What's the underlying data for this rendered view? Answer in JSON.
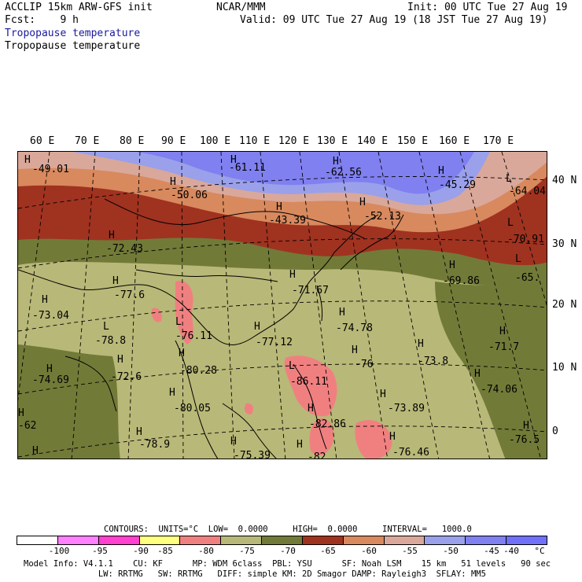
{
  "header": {
    "left_line1": "ACCLIP 15km ARW-GFS init",
    "left_line2": "Fcst:    9 h",
    "field_title_blue": "Tropopause temperature",
    "field_title_black": "Tropopause temperature",
    "center": "NCAR/MMM",
    "init": "Init: 00 UTC Tue 27 Aug 19",
    "valid": "Valid: 09 UTC Tue 27 Aug 19 (18 JST Tue 27 Aug 19)"
  },
  "map": {
    "lon_labels": [
      "60 E",
      "70 E",
      "80 E",
      "90 E",
      "100 E",
      "110 E",
      "120 E",
      "130 E",
      "140 E",
      "150 E",
      "160 E",
      "170 E"
    ],
    "lat_labels": [
      "40 N",
      "30 N",
      "20 N",
      "10 N",
      "0"
    ],
    "band_colors": {
      "c_n45": "#8080f0",
      "c_n50": "#9aa0ea",
      "c_n55": "#d9a89a",
      "c_n60": "#d8895e",
      "c_n65": "#a03220",
      "c_n70": "#727a38",
      "c_n75": "#b8b878",
      "c_n80": "#f08080"
    },
    "extrema": [
      {
        "letter": "H",
        "value": "-49.01"
      },
      {
        "letter": "H",
        "value": "-61.11"
      },
      {
        "letter": "H",
        "value": "-62.56"
      },
      {
        "letter": "H",
        "value": "-45.29"
      },
      {
        "letter": "L",
        "value": "-64.04"
      },
      {
        "letter": "H",
        "value": "-50.06"
      },
      {
        "letter": "H",
        "value": "-43.39"
      },
      {
        "letter": "H",
        "value": "-52.13"
      },
      {
        "letter": "L",
        "value": "-70.91"
      },
      {
        "letter": "H",
        "value": "-72.43"
      },
      {
        "letter": "H",
        "value": "-69.86"
      },
      {
        "letter": "L",
        "value": "-65."
      },
      {
        "letter": "H",
        "value": "-77.6"
      },
      {
        "letter": "H",
        "value": "-71.67"
      },
      {
        "letter": "H",
        "value": "-73.04"
      },
      {
        "letter": "L",
        "value": "-78.8"
      },
      {
        "letter": "L",
        "value": "-76.11"
      },
      {
        "letter": "H",
        "value": "-74.78"
      },
      {
        "letter": "H",
        "value": "-77.12"
      },
      {
        "letter": "H",
        "value": "-71.7"
      },
      {
        "letter": "H",
        "value": "-76"
      },
      {
        "letter": "H",
        "value": "-73.8"
      },
      {
        "letter": "H",
        "value": "-72.6"
      },
      {
        "letter": "H",
        "value": "-80.28"
      },
      {
        "letter": "L",
        "value": "-86.11"
      },
      {
        "letter": "H",
        "value": "-74.69"
      },
      {
        "letter": "H",
        "value": "-74.06"
      },
      {
        "letter": "H",
        "value": "-73.89"
      },
      {
        "letter": "H",
        "value": "-80.05"
      },
      {
        "letter": "H",
        "value": "-82.86"
      },
      {
        "letter": "H",
        "value": "-62"
      },
      {
        "letter": "H",
        "value": "-78.9"
      },
      {
        "letter": "H",
        "value": "-75.39"
      },
      {
        "letter": "H",
        "value": "-76.46"
      },
      {
        "letter": "H",
        "value": "-82"
      },
      {
        "letter": "H",
        "value": "-76.5"
      }
    ]
  },
  "contours": {
    "text": "CONTOURS:  UNITS=°C  LOW=  0.0000     HIGH=  0.0000     INTERVAL=   1000.0"
  },
  "colorbar": {
    "colors": [
      "#ffffff",
      "#ff80ff",
      "#ff40d0",
      "#ffff80",
      "#f08080",
      "#b8b878",
      "#727a38",
      "#a03220",
      "#d8895e",
      "#d9a89a",
      "#9aa0ea",
      "#8080f0",
      "#7070f8"
    ],
    "labels": [
      "-100",
      "-95",
      "-90",
      "-85",
      "-80",
      "-75",
      "-70",
      "-65",
      "-60",
      "-55",
      "-50",
      "-45",
      "-40"
    ],
    "unit": "°C"
  },
  "footer": {
    "line1": "Model Info: V4.1.1    CU: KF      MP: WDM 6class  PBL: YSU      SF: Noah LSM    15 km   51 levels   90 sec",
    "line2": "               LW: RRTMG   SW: RRTMG   DIFF: simple KM: 2D Smagor DAMP: Rayleigh3  SFLAY: MM5"
  }
}
